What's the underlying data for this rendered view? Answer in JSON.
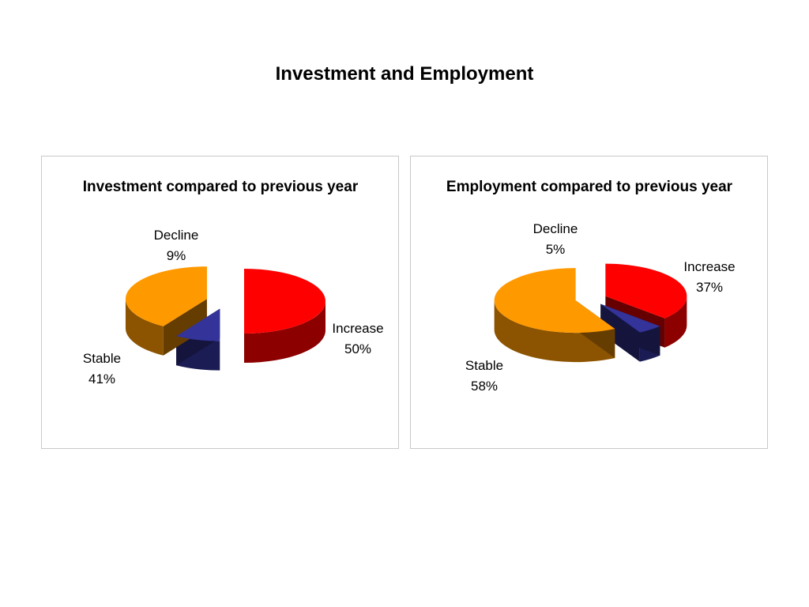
{
  "page": {
    "title": "Investment and Employment"
  },
  "chart_data": [
    {
      "type": "pie",
      "style": "3d-exploded",
      "title": "Investment compared to previous year",
      "slices": [
        {
          "label": "Increase",
          "value": 50,
          "display": "50%",
          "color": "#ff0000"
        },
        {
          "label": "Decline",
          "value": 9,
          "display": "9%",
          "color": "#333399"
        },
        {
          "label": "Stable",
          "value": 41,
          "display": "41%",
          "color": "#ff9900"
        }
      ]
    },
    {
      "type": "pie",
      "style": "3d-exploded",
      "title": "Employment compared to previous year",
      "slices": [
        {
          "label": "Increase",
          "value": 37,
          "display": "37%",
          "color": "#ff0000"
        },
        {
          "label": "Decline",
          "value": 5,
          "display": "5%",
          "color": "#333399"
        },
        {
          "label": "Stable",
          "value": 58,
          "display": "58%",
          "color": "#ff9900"
        }
      ]
    }
  ]
}
